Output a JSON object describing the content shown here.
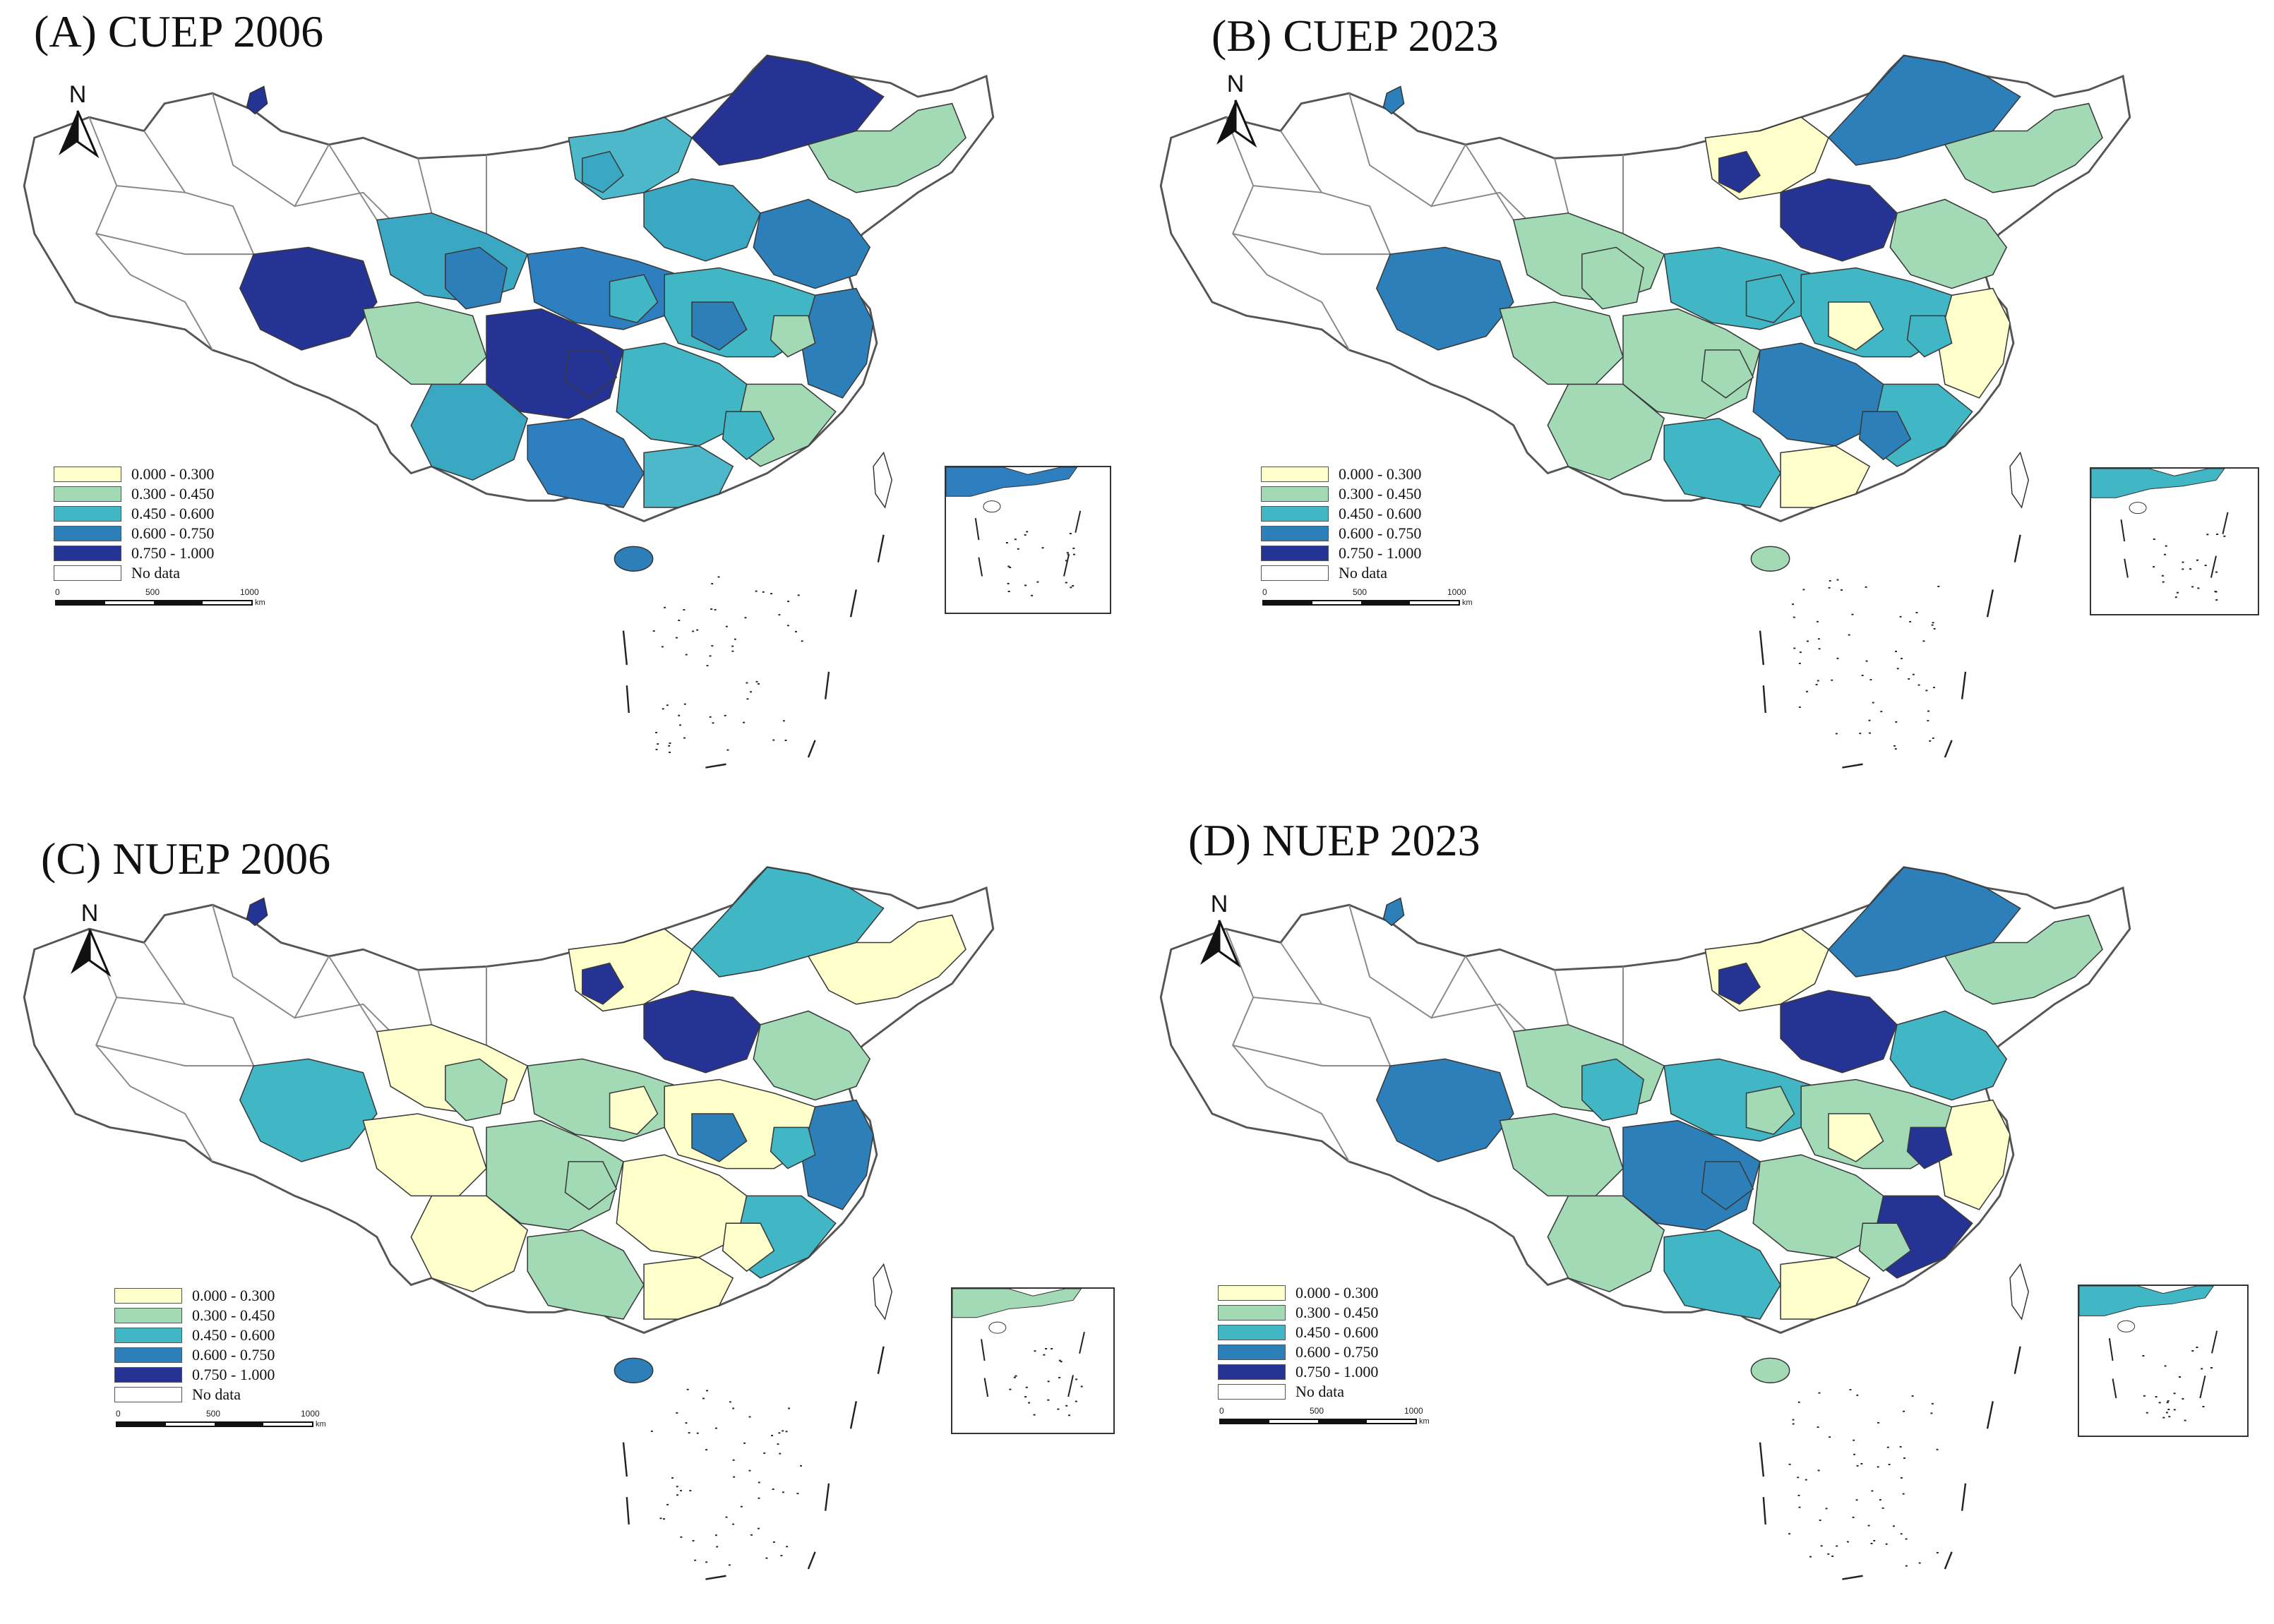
{
  "panels": [
    {
      "id": "A",
      "title": "(A) CUEP 2006",
      "palette": [
        "#3ba8c3",
        "#2d7fbf",
        "#4cb8c9",
        "#253494",
        "#a1dab4",
        "#3ba8c3",
        "#2c7fb8",
        "#41b6c4",
        "#2c7fb8",
        "#253494",
        "#41b6c4",
        "#a1dab4"
      ]
    },
    {
      "id": "B",
      "title": "(B) CUEP 2023",
      "palette": [
        "#a1dab4",
        "#41b6c4",
        "#ffffcc",
        "#2c7fb8",
        "#a1dab4",
        "#253494",
        "#a1dab4",
        "#41b6c4",
        "#ffffcc",
        "#a1dab4",
        "#2c7fb8",
        "#41b6c4"
      ]
    },
    {
      "id": "C",
      "title": "(C) NUEP 2006",
      "palette": [
        "#ffffcc",
        "#a1dab4",
        "#ffffcc",
        "#41b6c4",
        "#ffffcc",
        "#253494",
        "#a1dab4",
        "#ffffcc",
        "#2c7fb8",
        "#a1dab4",
        "#ffffcc",
        "#41b6c4"
      ]
    },
    {
      "id": "D",
      "title": "(D) NUEP 2023",
      "palette": [
        "#a1dab4",
        "#41b6c4",
        "#ffffcc",
        "#2c7fb8",
        "#a1dab4",
        "#253494",
        "#41b6c4",
        "#a1dab4",
        "#ffffcc",
        "#2c7fb8",
        "#a1dab4",
        "#253494"
      ]
    }
  ],
  "north_label": "N",
  "legend": [
    {
      "label": "0.000 - 0.300",
      "color": "#ffffcc"
    },
    {
      "label": "0.300 - 0.450",
      "color": "#a1dab4"
    },
    {
      "label": "0.450 - 0.600",
      "color": "#41b6c4"
    },
    {
      "label": "0.600 - 0.750",
      "color": "#2c7fb8"
    },
    {
      "label": "0.750 - 1.000",
      "color": "#253494"
    },
    {
      "label": "No data",
      "color": "#ffffff"
    }
  ],
  "scale": {
    "ticks": [
      "0",
      "500",
      "1000"
    ],
    "unit": "km"
  },
  "colors": {
    "border": "#555555",
    "nodata": "#ffffff"
  }
}
